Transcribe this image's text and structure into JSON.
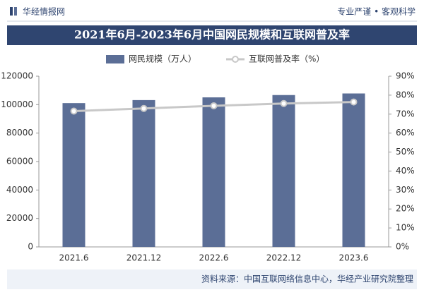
{
  "header": {
    "brand": "华经情报网",
    "slogan": "专业严谨 • 客观科学"
  },
  "chart_data": {
    "type": "bar",
    "title": "2021年6月-2023年6月中国网民规模和互联网普及率",
    "categories": [
      "2021.6",
      "2021.12",
      "2022.6",
      "2022.12",
      "2023.6"
    ],
    "series": [
      {
        "name": "网民规模（万人）",
        "color": "#5b6e96",
        "type": "bar",
        "values": [
          101074,
          103195,
          105114,
          106744,
          107853
        ]
      },
      {
        "name": "互联网普及率（%）",
        "color": "#c8c8c8",
        "type": "line",
        "axis": "y2",
        "values": [
          71.6,
          73.0,
          74.4,
          75.6,
          76.4
        ]
      }
    ],
    "ylim": [
      0,
      120000
    ],
    "yticks": [
      0,
      20000,
      40000,
      60000,
      80000,
      100000,
      120000
    ],
    "y2lim": [
      0,
      90
    ],
    "y2ticks": [
      {
        "value": 0,
        "label": "0%"
      },
      {
        "value": 10,
        "label": "10%"
      },
      {
        "value": 20,
        "label": "20%"
      },
      {
        "value": 30,
        "label": "30%"
      },
      {
        "value": 40,
        "label": "40%"
      },
      {
        "value": 50,
        "label": "50%"
      },
      {
        "value": 60,
        "label": "60%"
      },
      {
        "value": 70,
        "label": "70%"
      },
      {
        "value": 80,
        "label": "80%"
      },
      {
        "value": 90,
        "label": "90%"
      }
    ],
    "legend": "top"
  },
  "footer": {
    "source": "资料来源：中国互联网络信息中心，华经产业研究院整理"
  }
}
